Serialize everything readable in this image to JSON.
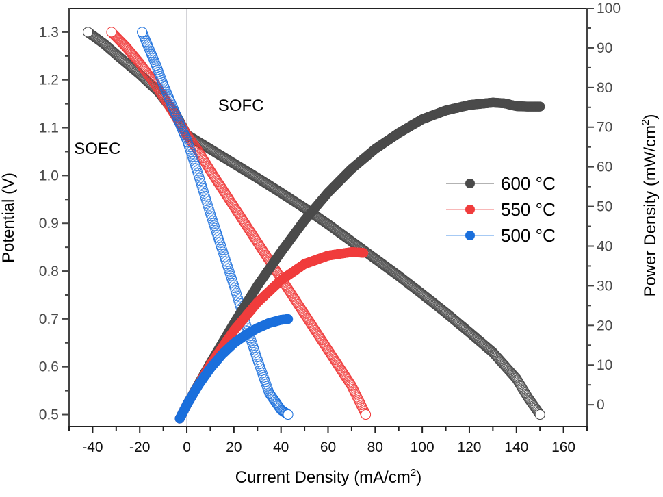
{
  "chart_data": {
    "type": "scatter",
    "title": "",
    "xlabel": "Current Density (mA/cm",
    "xlabel_sup": "2",
    "xlabel_end": ")",
    "ylabel": "Potential (V)",
    "y2label": "Power Density (mW/cm",
    "y2label_sup": "2",
    "y2label_end": ")",
    "xlim": [
      -50,
      170
    ],
    "ylim": [
      0.475,
      1.35
    ],
    "y2lim": [
      -5.5,
      100
    ],
    "x_ticks": [
      -40,
      -20,
      0,
      20,
      40,
      60,
      80,
      100,
      120,
      140,
      160
    ],
    "x_tick_labels": [
      "-40",
      "-20",
      "0",
      "20",
      "40",
      "60",
      "80",
      "100",
      "120",
      "140",
      "160"
    ],
    "y_ticks": [
      0.5,
      0.6,
      0.7,
      0.8,
      0.9,
      1.0,
      1.1,
      1.2,
      1.3
    ],
    "y_tick_labels": [
      "0.5",
      "0.6",
      "0.7",
      "0.8",
      "0.9",
      "1.0",
      "1.1",
      "1.2",
      "1.3"
    ],
    "y2_ticks": [
      0,
      10,
      20,
      30,
      40,
      50,
      60,
      70,
      80,
      90,
      100
    ],
    "y2_tick_labels": [
      "0",
      "10",
      "20",
      "30",
      "40",
      "50",
      "60",
      "70",
      "80",
      "90",
      "100"
    ],
    "grid": false,
    "zero_line_x": 0,
    "annotations": [
      {
        "text": "SOFC",
        "x": 23,
        "y": 1.135
      },
      {
        "text": "SOEC",
        "x": -38,
        "y": 1.045
      }
    ],
    "legend": {
      "placement": "right",
      "entries": [
        "600 °C",
        "550 °C",
        "500 °C"
      ]
    },
    "series": [
      {
        "name": "600 °C",
        "color": "#4a4a4a",
        "line_color": "#9a9a9a",
        "iv": {
          "x": [
            -42,
            -35,
            -28,
            -20,
            -12,
            -5,
            0,
            10,
            20,
            30,
            40,
            50,
            60,
            70,
            80,
            90,
            100,
            110,
            120,
            130,
            140,
            145,
            150
          ],
          "y": [
            1.3,
            1.275,
            1.245,
            1.212,
            1.175,
            1.13,
            1.085,
            1.055,
            1.025,
            0.995,
            0.964,
            0.932,
            0.898,
            0.862,
            0.826,
            0.79,
            0.752,
            0.713,
            0.672,
            0.63,
            0.575,
            0.535,
            0.5
          ]
        },
        "power": {
          "x": [
            -3,
            0,
            10,
            20,
            30,
            40,
            50,
            60,
            70,
            80,
            90,
            100,
            110,
            120,
            130,
            135,
            140,
            145,
            150
          ],
          "y": [
            -3.5,
            0,
            10.5,
            20.5,
            30,
            38.5,
            46.5,
            53.5,
            59.5,
            64.5,
            68.5,
            72,
            74.2,
            75.6,
            76.2,
            76.0,
            75.3,
            75.2,
            75.2
          ]
        }
      },
      {
        "name": "550 °C",
        "color": "#f03c3c",
        "line_color": "#f5a0a0",
        "iv": {
          "x": [
            -32,
            -26,
            -20,
            -14,
            -8,
            -3,
            0,
            5,
            10,
            20,
            30,
            40,
            50,
            60,
            70,
            76
          ],
          "y": [
            1.3,
            1.27,
            1.235,
            1.195,
            1.15,
            1.11,
            1.085,
            1.05,
            1.01,
            0.935,
            0.86,
            0.785,
            0.71,
            0.635,
            0.56,
            0.5
          ]
        },
        "power": {
          "x": [
            -3,
            0,
            10,
            20,
            30,
            40,
            50,
            60,
            70,
            75
          ],
          "y": [
            -3.5,
            0,
            10.1,
            18.7,
            25.8,
            31.4,
            35.5,
            37.6,
            38.5,
            38.3
          ]
        }
      },
      {
        "name": "500 °C",
        "color": "#1a6fdc",
        "line_color": "#8ab8f0",
        "iv": {
          "x": [
            -19,
            -16,
            -13,
            -10,
            -7,
            -4,
            -1,
            0,
            5,
            10,
            15,
            20,
            25,
            30,
            35,
            40,
            43
          ],
          "y": [
            1.3,
            1.265,
            1.23,
            1.19,
            1.155,
            1.12,
            1.085,
            1.075,
            1.0,
            0.92,
            0.845,
            0.77,
            0.69,
            0.615,
            0.545,
            0.51,
            0.5
          ]
        },
        "power": {
          "x": [
            -3,
            0,
            5,
            10,
            15,
            20,
            25,
            30,
            35,
            40,
            43
          ],
          "y": [
            -3.5,
            0,
            5.0,
            9.2,
            12.7,
            15.5,
            17.6,
            19.3,
            20.6,
            21.4,
            21.6
          ]
        }
      }
    ]
  }
}
